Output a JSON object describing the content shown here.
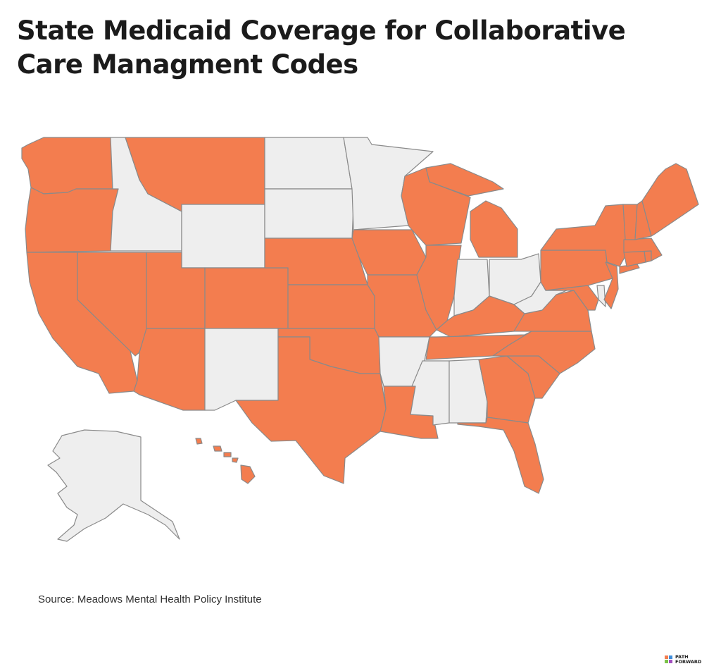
{
  "title": "State Medicaid Coverage for Collaborative Care Managment Codes",
  "source": "Source: Meadows Mental Health Policy Institute",
  "logo": {
    "line1": "PATH",
    "line2": "FORWARD",
    "name": "path-forward-logo"
  },
  "colors": {
    "covered": "#F37D4F",
    "not_covered": "#EEEEEE",
    "border": "#8A8A8A",
    "title": "#1B1B1B"
  },
  "states": [
    {
      "name": "Washington",
      "covered": true
    },
    {
      "name": "Oregon",
      "covered": true
    },
    {
      "name": "California",
      "covered": true
    },
    {
      "name": "Nevada",
      "covered": true
    },
    {
      "name": "Idaho",
      "covered": false
    },
    {
      "name": "Montana",
      "covered": true
    },
    {
      "name": "Wyoming",
      "covered": false
    },
    {
      "name": "Utah",
      "covered": true
    },
    {
      "name": "Arizona",
      "covered": true
    },
    {
      "name": "Colorado",
      "covered": true
    },
    {
      "name": "New Mexico",
      "covered": false
    },
    {
      "name": "North Dakota",
      "covered": false
    },
    {
      "name": "South Dakota",
      "covered": false
    },
    {
      "name": "Nebraska",
      "covered": true
    },
    {
      "name": "Kansas",
      "covered": true
    },
    {
      "name": "Oklahoma",
      "covered": true
    },
    {
      "name": "Texas",
      "covered": true
    },
    {
      "name": "Minnesota",
      "covered": false
    },
    {
      "name": "Iowa",
      "covered": true
    },
    {
      "name": "Missouri",
      "covered": true
    },
    {
      "name": "Arkansas",
      "covered": false
    },
    {
      "name": "Louisiana",
      "covered": true
    },
    {
      "name": "Wisconsin",
      "covered": true
    },
    {
      "name": "Illinois",
      "covered": true
    },
    {
      "name": "Michigan",
      "covered": true
    },
    {
      "name": "Indiana",
      "covered": false
    },
    {
      "name": "Ohio",
      "covered": false
    },
    {
      "name": "Kentucky",
      "covered": true
    },
    {
      "name": "Tennessee",
      "covered": true
    },
    {
      "name": "Mississippi",
      "covered": false
    },
    {
      "name": "Alabama",
      "covered": false
    },
    {
      "name": "Georgia",
      "covered": true
    },
    {
      "name": "Florida",
      "covered": true
    },
    {
      "name": "South Carolina",
      "covered": true
    },
    {
      "name": "North Carolina",
      "covered": true
    },
    {
      "name": "Virginia",
      "covered": true
    },
    {
      "name": "West Virginia",
      "covered": false
    },
    {
      "name": "Maryland",
      "covered": true
    },
    {
      "name": "Delaware",
      "covered": false
    },
    {
      "name": "Pennsylvania",
      "covered": true
    },
    {
      "name": "New Jersey",
      "covered": true
    },
    {
      "name": "New York",
      "covered": true
    },
    {
      "name": "Connecticut",
      "covered": true
    },
    {
      "name": "Rhode Island",
      "covered": true
    },
    {
      "name": "Massachusetts",
      "covered": true
    },
    {
      "name": "Vermont",
      "covered": true
    },
    {
      "name": "New Hampshire",
      "covered": true
    },
    {
      "name": "Maine",
      "covered": true
    },
    {
      "name": "Alaska",
      "covered": false
    },
    {
      "name": "Hawaii",
      "covered": true
    }
  ]
}
